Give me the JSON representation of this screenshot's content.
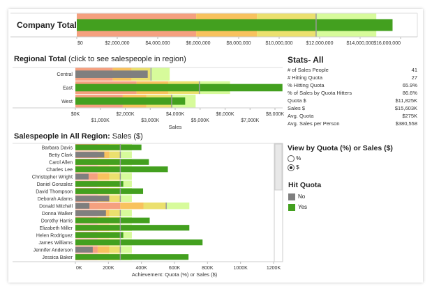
{
  "colors": {
    "band1": "#f5a07f",
    "band2": "#f8c25e",
    "band3": "#ebe06e",
    "band4": "#d7fb9b",
    "hit": "#43a01f",
    "miss": "#7f7f7f",
    "quota_line": "#999999"
  },
  "company": {
    "label": "Company Total"
  },
  "regional": {
    "title_bold": "Regional Total",
    "title_rest": " (click to see salespeople in region)"
  },
  "salespeople": {
    "title_bold": "Salespeople in All Region:",
    "title_rest": " Sales ($)"
  },
  "stats": {
    "title": "Stats- All",
    "rows": [
      {
        "label": "# of Sales People",
        "value": "41"
      },
      {
        "label": "# Hitting Quota",
        "value": "27"
      },
      {
        "label": "% Hitting Quota",
        "value": "65.9%"
      },
      {
        "label": "% of Sales by Quota Hitters",
        "value": "86.6%"
      },
      {
        "label": "Quota $",
        "value": "$11,825K"
      },
      {
        "label": "Sales $",
        "value": "$15,603K"
      },
      {
        "label": "Avg. Quota",
        "value": "$275K"
      },
      {
        "label": "Avg. Sales per Person",
        "value": "$380,558"
      }
    ]
  },
  "view_toggle": {
    "title": "View by Quota (%) or Sales ($)",
    "options": [
      {
        "label": "%",
        "selected": false
      },
      {
        "label": "$",
        "selected": true
      }
    ]
  },
  "legend": {
    "title": "Hit Quota",
    "items": [
      {
        "label": "No",
        "color_key": "miss"
      },
      {
        "label": "Yes",
        "color_key": "hit"
      }
    ]
  },
  "chart_data": [
    {
      "type": "bar",
      "name": "company-total-bullet",
      "categories": [
        "Company Total"
      ],
      "values": [
        15603000
      ],
      "quota": [
        11825000
      ],
      "bands": [
        [
          5900000,
          8900000,
          11800000,
          14800000
        ]
      ],
      "hit_quota": [
        true
      ],
      "xlim": [
        0,
        16000000
      ],
      "xticks": [
        "$0",
        "$2,000,000",
        "$4,000,000",
        "$6,000,000",
        "$8,000,000",
        "$10,000,000",
        "$12,000,000",
        "$14,000,000",
        "$16,000,000"
      ],
      "xtick_values": [
        0,
        2000000,
        4000000,
        6000000,
        8000000,
        10000000,
        12000000,
        14000000,
        16000000
      ],
      "xlabel": ""
    },
    {
      "type": "bar",
      "name": "regional-total-bullet",
      "categories": [
        "Central",
        "East",
        "West"
      ],
      "values": [
        2900,
        8300,
        4400
      ],
      "quota": [
        3030,
        4970,
        3860
      ],
      "bands": [
        [
          1500,
          2250,
          3000,
          3780
        ],
        [
          2450,
          3720,
          4950,
          6200
        ],
        [
          1900,
          2850,
          3850,
          4820
        ]
      ],
      "hit_quota": [
        false,
        true,
        true
      ],
      "xlim": [
        0,
        8500
      ],
      "xticks": [
        "$0K",
        "$1,000K",
        "$2,000K",
        "$3,000K",
        "$4,000K",
        "$5,000K",
        "$6,000K",
        "$7,000K",
        "$8,000K"
      ],
      "xtick_values": [
        0,
        1000,
        2000,
        3000,
        4000,
        5000,
        6000,
        7000,
        8000
      ],
      "xlabel": "Sales"
    },
    {
      "type": "bar",
      "name": "salespeople-bullet",
      "categories": [
        "Barbara Davis",
        "Betty Clark",
        "Carol Allen",
        "Charles Lee",
        "Christopher Wright",
        "Daniel Gonzalez",
        "David Thompson",
        "Deborah Adams",
        "Donald Mitchell",
        "Donna Walker",
        "Dorothy Harris",
        "Elizabeth Miller",
        "Helen Rodriguez",
        "James Williams",
        "Jennifer Anderson",
        "Jessica Baker"
      ],
      "values": [
        400,
        175,
        445,
        560,
        80,
        290,
        410,
        205,
        85,
        185,
        450,
        690,
        290,
        770,
        105,
        685
      ],
      "quota": [
        272,
        272,
        272,
        272,
        272,
        272,
        272,
        272,
        550,
        272,
        272,
        272,
        272,
        272,
        272,
        272
      ],
      "bands": [
        [
          135,
          205,
          272,
          342
        ],
        [
          135,
          205,
          272,
          342
        ],
        [
          135,
          205,
          272,
          342
        ],
        [
          135,
          205,
          272,
          342
        ],
        [
          135,
          205,
          272,
          342
        ],
        [
          135,
          205,
          272,
          342
        ],
        [
          135,
          205,
          272,
          342
        ],
        [
          135,
          205,
          272,
          342
        ],
        [
          272,
          412,
          550,
          690
        ],
        [
          135,
          205,
          272,
          342
        ],
        [
          135,
          205,
          272,
          342
        ],
        [
          135,
          205,
          272,
          342
        ],
        [
          135,
          205,
          272,
          342
        ],
        [
          135,
          205,
          272,
          342
        ],
        [
          135,
          205,
          272,
          342
        ],
        [
          135,
          205,
          272,
          342
        ]
      ],
      "hit_quota": [
        true,
        false,
        true,
        true,
        false,
        true,
        true,
        false,
        false,
        false,
        true,
        true,
        true,
        true,
        false,
        true
      ],
      "xlim": [
        0,
        1200
      ],
      "xticks": [
        "0K",
        "200K",
        "400K",
        "600K",
        "800K",
        "1000K",
        "1200K"
      ],
      "xtick_values": [
        0,
        200,
        400,
        600,
        800,
        1000,
        1200
      ],
      "xlabel": "Achievement: Quota (%) or Sales ($)"
    }
  ]
}
